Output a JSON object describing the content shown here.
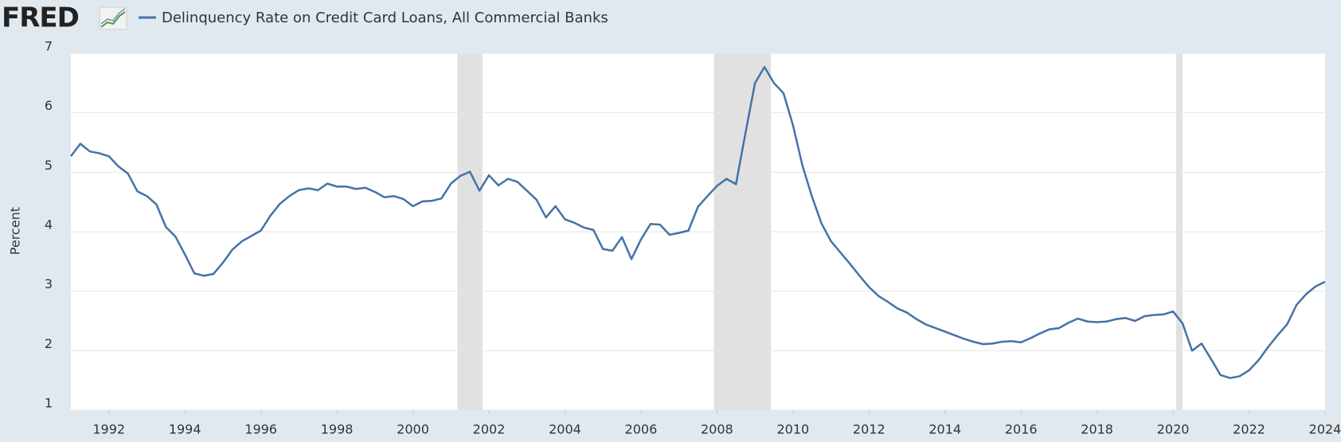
{
  "brand": "FRED",
  "chart_data": {
    "type": "line",
    "x": [
      1991,
      1991.25,
      1991.5,
      1991.75,
      1992,
      1992.25,
      1992.5,
      1992.75,
      1993,
      1993.25,
      1993.5,
      1993.75,
      1994,
      1994.25,
      1994.5,
      1994.75,
      1995,
      1995.25,
      1995.5,
      1995.75,
      1996,
      1996.25,
      1996.5,
      1996.75,
      1997,
      1997.25,
      1997.5,
      1997.75,
      1998,
      1998.25,
      1998.5,
      1998.75,
      1999,
      1999.25,
      1999.5,
      1999.75,
      2000,
      2000.25,
      2000.5,
      2000.75,
      2001,
      2001.25,
      2001.5,
      2001.75,
      2002,
      2002.25,
      2002.5,
      2002.75,
      2003,
      2003.25,
      2003.5,
      2003.75,
      2004,
      2004.25,
      2004.5,
      2004.75,
      2005,
      2005.25,
      2005.5,
      2005.75,
      2006,
      2006.25,
      2006.5,
      2006.75,
      2007,
      2007.25,
      2007.5,
      2007.75,
      2008,
      2008.25,
      2008.5,
      2008.75,
      2009,
      2009.25,
      2009.5,
      2009.75,
      2010,
      2010.25,
      2010.5,
      2010.75,
      2011,
      2011.25,
      2011.5,
      2011.75,
      2012,
      2012.25,
      2012.5,
      2012.75,
      2013,
      2013.25,
      2013.5,
      2013.75,
      2014,
      2014.25,
      2014.5,
      2014.75,
      2015,
      2015.25,
      2015.5,
      2015.75,
      2016,
      2016.25,
      2016.5,
      2016.75,
      2017,
      2017.25,
      2017.5,
      2017.75,
      2018,
      2018.25,
      2018.5,
      2018.75,
      2019,
      2019.25,
      2019.5,
      2019.75,
      2020,
      2020.25,
      2020.5,
      2020.75,
      2021,
      2021.25,
      2021.5,
      2021.75,
      2022,
      2022.25,
      2022.5,
      2022.75,
      2023,
      2023.25,
      2023.5,
      2023.75,
      2024
    ],
    "series": [
      {
        "name": "Delinquency Rate on Credit Card Loans, All Commercial Banks",
        "color": "#4572a7",
        "values": [
          5.27,
          5.48,
          5.35,
          5.32,
          5.27,
          5.1,
          4.98,
          4.68,
          4.6,
          4.46,
          4.08,
          3.92,
          3.62,
          3.3,
          3.26,
          3.29,
          3.48,
          3.7,
          3.84,
          3.93,
          4.02,
          4.27,
          4.47,
          4.6,
          4.7,
          4.73,
          4.7,
          4.81,
          4.76,
          4.76,
          4.72,
          4.74,
          4.67,
          4.58,
          4.6,
          4.55,
          4.43,
          4.51,
          4.52,
          4.56,
          4.81,
          4.94,
          5.01,
          4.69,
          4.95,
          4.78,
          4.89,
          4.84,
          4.69,
          4.54,
          4.24,
          4.43,
          4.21,
          4.15,
          4.07,
          4.03,
          3.71,
          3.68,
          3.91,
          3.54,
          3.87,
          4.13,
          4.12,
          3.95,
          3.98,
          4.02,
          4.42,
          4.6,
          4.77,
          4.89,
          4.8,
          5.66,
          6.5,
          6.77,
          6.5,
          6.33,
          5.79,
          5.11,
          4.59,
          4.14,
          3.84,
          3.65,
          3.46,
          3.26,
          3.07,
          2.92,
          2.82,
          2.71,
          2.64,
          2.53,
          2.44,
          2.38,
          2.32,
          2.26,
          2.2,
          2.15,
          2.11,
          2.12,
          2.15,
          2.16,
          2.14,
          2.21,
          2.29,
          2.36,
          2.38,
          2.47,
          2.54,
          2.49,
          2.48,
          2.49,
          2.53,
          2.55,
          2.5,
          2.58,
          2.6,
          2.61,
          2.66,
          2.46,
          2.0,
          2.12,
          1.86,
          1.59,
          1.54,
          1.57,
          1.67,
          1.84,
          2.06,
          2.26,
          2.44,
          2.77,
          2.95,
          3.08,
          3.16
        ]
      }
    ],
    "shaded_ranges": [
      [
        2001.17,
        2001.83
      ],
      [
        2007.92,
        2009.42
      ],
      [
        2020.08,
        2020.25
      ]
    ],
    "shade_color": "#e1e1e1",
    "ylabel": "Percent",
    "xlim": [
      1991,
      2024
    ],
    "ylim": [
      1,
      7
    ],
    "xticks": [
      1992,
      1994,
      1996,
      1998,
      2000,
      2002,
      2004,
      2006,
      2008,
      2010,
      2012,
      2014,
      2016,
      2018,
      2020,
      2022,
      2024
    ],
    "yticks": [
      1,
      2,
      3,
      4,
      5,
      6,
      7
    ],
    "grid": true
  }
}
